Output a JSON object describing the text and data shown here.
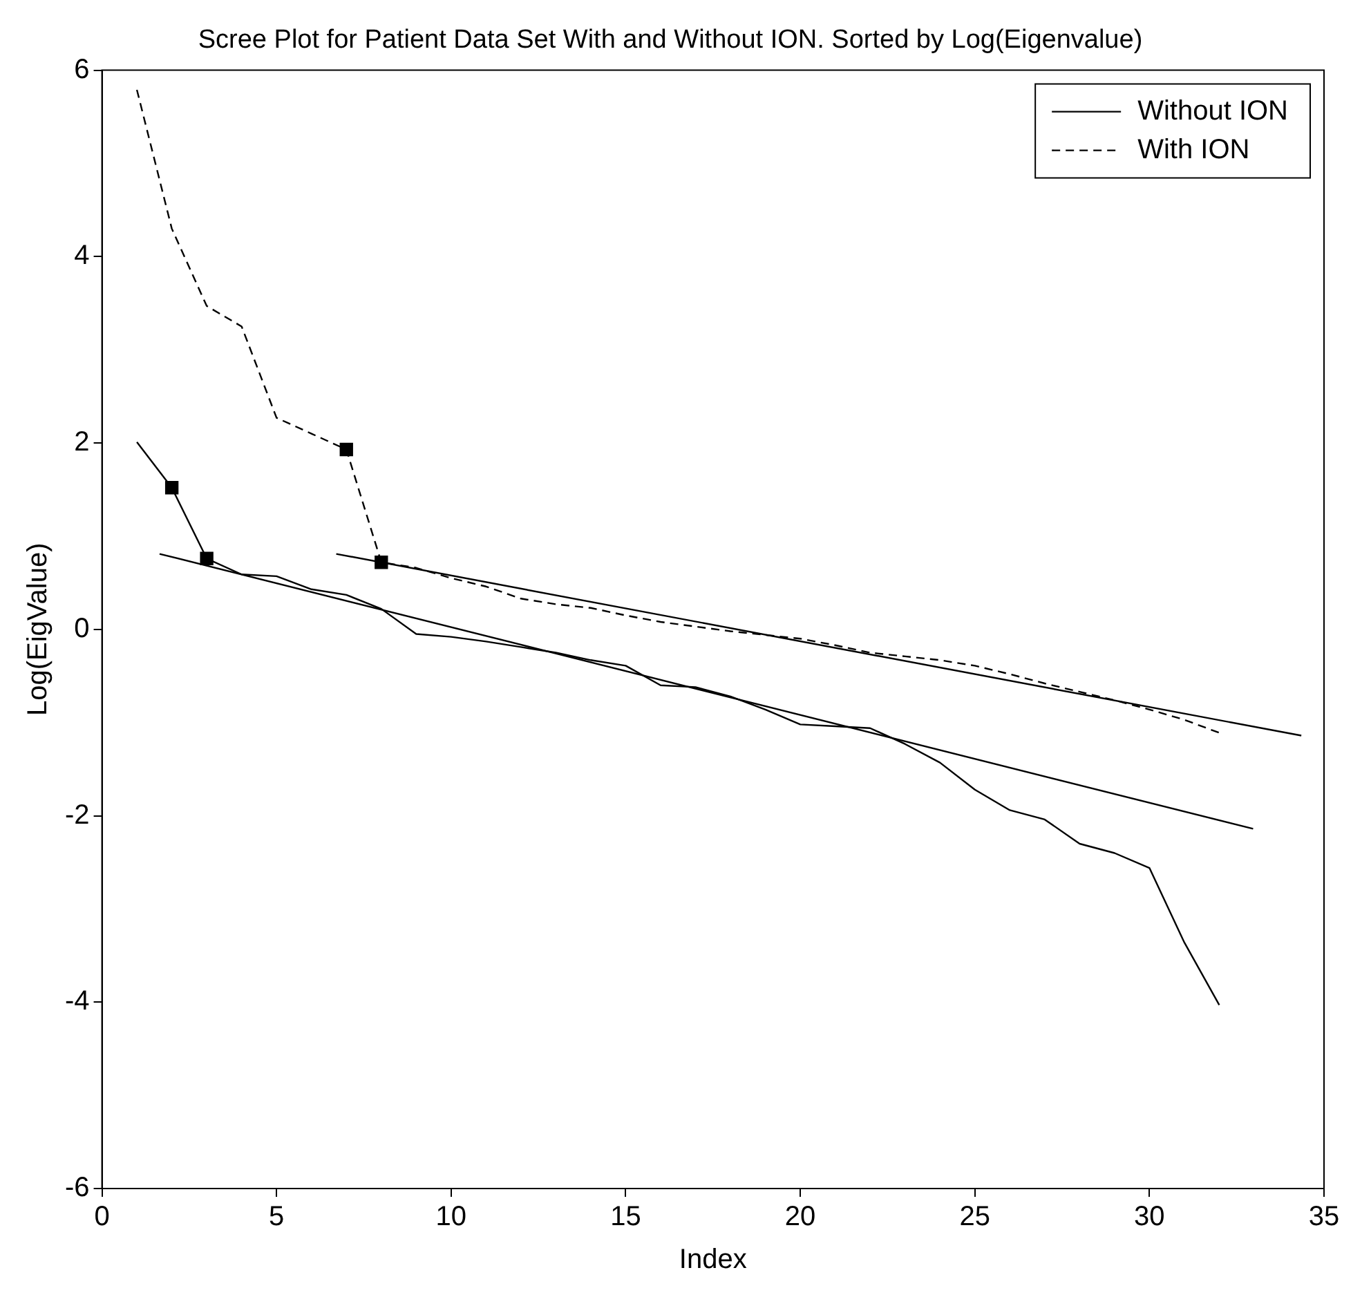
{
  "chart_data": {
    "type": "line",
    "title": "Scree Plot for Patient Data Set With and Without ION. Sorted by Log(Eigenvalue)",
    "xlabel": "Index",
    "ylabel": "Log(EigValue)",
    "xlim": [
      0,
      35
    ],
    "xticks": [
      0,
      5,
      10,
      15,
      20,
      25,
      30,
      35
    ],
    "ylim": [
      -6,
      6
    ],
    "yticks": [
      -6,
      -4,
      -2,
      0,
      2,
      4,
      6
    ],
    "grid": false,
    "legend": "top right",
    "marker": "none",
    "series": [
      {
        "name": "Without ION",
        "color": "#000000",
        "line_style": "solid",
        "x": [
          1,
          2,
          3,
          4,
          5,
          6,
          7,
          8,
          9,
          10,
          11,
          12,
          13,
          14,
          15,
          16,
          17,
          18,
          19,
          20,
          21,
          22,
          23,
          24,
          25,
          26,
          27,
          28,
          29,
          30,
          31,
          32
        ],
        "values": [
          2.01,
          1.52,
          0.76,
          0.59,
          0.57,
          0.43,
          0.37,
          0.22,
          -0.05,
          -0.08,
          -0.13,
          -0.19,
          -0.25,
          -0.33,
          -0.39,
          -0.6,
          -0.62,
          -0.72,
          -0.86,
          -1.02,
          -1.04,
          -1.06,
          -1.23,
          -1.43,
          -1.72,
          -1.94,
          -2.04,
          -2.3,
          -2.4,
          -2.56,
          -3.36,
          -4.03
        ]
      },
      {
        "name": "With ION",
        "color": "#000000",
        "line_style": "dashed",
        "x": [
          1,
          2,
          3,
          4,
          5,
          6,
          7,
          8,
          9,
          10,
          11,
          12,
          13,
          14,
          15,
          16,
          17,
          18,
          19,
          20,
          21,
          22,
          23,
          24,
          25,
          26,
          27,
          28,
          29,
          30,
          31,
          32
        ],
        "values": [
          5.79,
          4.3,
          3.47,
          3.25,
          2.27,
          2.1,
          1.93,
          0.72,
          0.66,
          0.55,
          0.46,
          0.33,
          0.27,
          0.23,
          0.15,
          0.08,
          0.03,
          -0.02,
          -0.06,
          -0.1,
          -0.17,
          -0.25,
          -0.29,
          -0.33,
          -0.39,
          -0.48,
          -0.58,
          -0.67,
          -0.76,
          -0.86,
          -0.97,
          -1.11
        ]
      },
      {
        "type": "line",
        "color": "#000000",
        "line_style": "solid",
        "x": [
          1.65,
          32.97
        ],
        "values": [
          0.81,
          -2.14
        ]
      },
      {
        "type": "line",
        "color": "#000000",
        "line_style": "solid",
        "x": [
          6.71,
          34.35
        ],
        "values": [
          0.81,
          -1.14
        ]
      },
      {
        "type": "scatter",
        "color": "#000000",
        "marker": "square",
        "x": [
          2,
          3,
          7,
          8
        ],
        "values": [
          1.52,
          0.76,
          1.93,
          0.72
        ]
      }
    ]
  }
}
